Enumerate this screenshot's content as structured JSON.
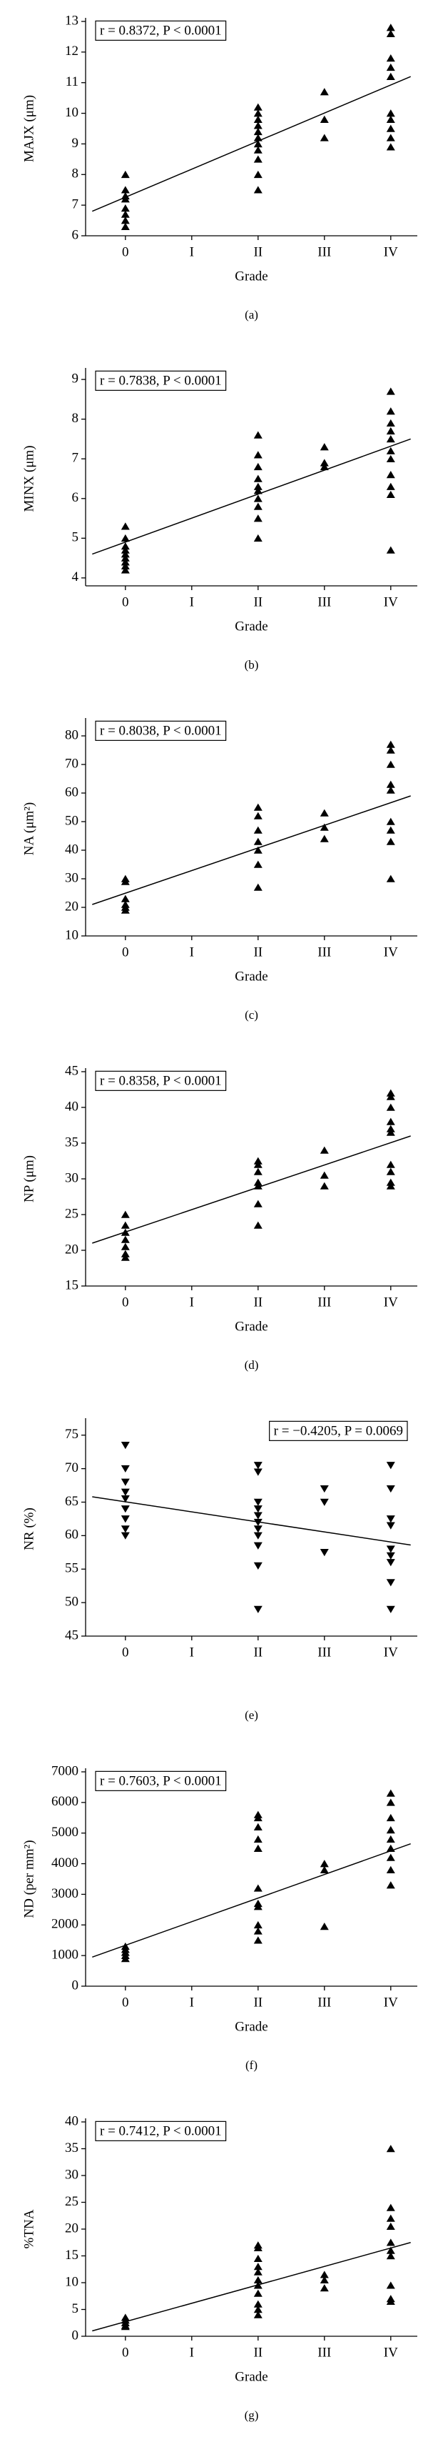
{
  "chart_data": [
    {
      "type": "scatter",
      "ylabel": "MAJX (μm)",
      "xlabel": "Grade",
      "caption": "(a)",
      "annotation": "r = 0.8372, P < 0.0001",
      "annotation_corner": "upper left",
      "marker": "triangle-up",
      "color": "#000000",
      "xlim": [
        -0.6,
        4.4
      ],
      "xticks": [
        0,
        {
          "value": 1,
          "label": "I"
        },
        {
          "value": 2,
          "label": "II"
        },
        {
          "value": 3,
          "label": "III"
        },
        {
          "value": 4,
          "label": "IV"
        }
      ],
      "ylim": [
        6,
        13
      ],
      "yticks": [
        6,
        7,
        8,
        9,
        10,
        11,
        12,
        13
      ],
      "x": [
        0,
        0,
        0,
        0,
        0,
        0,
        0,
        0,
        2,
        2,
        2,
        2,
        2,
        2,
        2,
        2,
        2,
        2,
        2,
        3,
        3,
        3,
        4,
        4,
        4,
        4,
        4,
        4,
        4,
        4,
        4,
        4
      ],
      "values": [
        8.0,
        7.5,
        7.3,
        7.2,
        6.9,
        6.7,
        6.5,
        6.3,
        10.2,
        10.0,
        9.8,
        9.6,
        9.4,
        9.2,
        9.0,
        8.8,
        8.5,
        8.0,
        7.5,
        10.7,
        9.8,
        9.2,
        12.8,
        12.6,
        11.8,
        11.5,
        11.2,
        10.0,
        9.8,
        9.5,
        9.2,
        8.9
      ],
      "fit": {
        "x": [
          -0.5,
          4.3
        ],
        "y": [
          6.8,
          11.2
        ]
      }
    },
    {
      "type": "scatter",
      "ylabel": "MINX (μm)",
      "xlabel": "Grade",
      "caption": "(b)",
      "annotation": "r = 0.7838, P < 0.0001",
      "annotation_corner": "upper left",
      "marker": "triangle-up",
      "color": "#000000",
      "xlim": [
        -0.6,
        4.4
      ],
      "xticks": [
        0,
        {
          "value": 1,
          "label": "I"
        },
        {
          "value": 2,
          "label": "II"
        },
        {
          "value": 3,
          "label": "III"
        },
        {
          "value": 4,
          "label": "IV"
        }
      ],
      "ylim": [
        3.8,
        9.2
      ],
      "yticks": [
        4,
        5,
        6,
        7,
        8,
        9
      ],
      "x": [
        0,
        0,
        0,
        0,
        0,
        0,
        0,
        0,
        0,
        2,
        2,
        2,
        2,
        2,
        2,
        2,
        2,
        2,
        2,
        3,
        3,
        3,
        4,
        4,
        4,
        4,
        4,
        4,
        4,
        4,
        4,
        4,
        4
      ],
      "values": [
        5.3,
        5.0,
        4.8,
        4.7,
        4.6,
        4.5,
        4.4,
        4.3,
        4.2,
        7.6,
        7.1,
        6.8,
        6.5,
        6.3,
        6.2,
        6.0,
        5.8,
        5.5,
        5.0,
        7.3,
        6.9,
        6.8,
        8.7,
        8.2,
        7.9,
        7.7,
        7.5,
        7.2,
        7.0,
        6.6,
        6.3,
        6.1,
        4.7
      ],
      "fit": {
        "x": [
          -0.5,
          4.3
        ],
        "y": [
          4.6,
          7.5
        ]
      }
    },
    {
      "type": "scatter",
      "ylabel": "NA (μm²)",
      "xlabel": "Grade",
      "caption": "(c)",
      "annotation": "r = 0.8038, P < 0.0001",
      "annotation_corner": "upper left",
      "marker": "triangle-up",
      "color": "#000000",
      "xlim": [
        -0.6,
        4.4
      ],
      "xticks": [
        0,
        {
          "value": 1,
          "label": "I"
        },
        {
          "value": 2,
          "label": "II"
        },
        {
          "value": 3,
          "label": "III"
        },
        {
          "value": 4,
          "label": "IV"
        }
      ],
      "ylim": [
        10,
        85
      ],
      "yticks": [
        10,
        20,
        30,
        40,
        50,
        60,
        70,
        80
      ],
      "x": [
        0,
        0,
        0,
        0,
        0,
        0,
        2,
        2,
        2,
        2,
        2,
        2,
        2,
        3,
        3,
        3,
        4,
        4,
        4,
        4,
        4,
        4,
        4,
        4,
        4
      ],
      "values": [
        30,
        29,
        23,
        21,
        20,
        19,
        55,
        52,
        47,
        43,
        40,
        35,
        27,
        53,
        48,
        44,
        77,
        75,
        70,
        63,
        61,
        50,
        47,
        43,
        30
      ],
      "fit": {
        "x": [
          -0.5,
          4.3
        ],
        "y": [
          21,
          59
        ]
      }
    },
    {
      "type": "scatter",
      "ylabel": "NP (μm)",
      "xlabel": "Grade",
      "caption": "(d)",
      "annotation": "r = 0.8358, P < 0.0001",
      "annotation_corner": "upper left",
      "marker": "triangle-up",
      "color": "#000000",
      "xlim": [
        -0.6,
        4.4
      ],
      "xticks": [
        0,
        {
          "value": 1,
          "label": "I"
        },
        {
          "value": 2,
          "label": "II"
        },
        {
          "value": 3,
          "label": "III"
        },
        {
          "value": 4,
          "label": "IV"
        }
      ],
      "ylim": [
        15,
        45
      ],
      "yticks": [
        15,
        20,
        25,
        30,
        35,
        40,
        45
      ],
      "x": [
        0,
        0,
        0,
        0,
        0,
        0,
        0,
        2,
        2,
        2,
        2,
        2,
        2,
        2,
        3,
        3,
        3,
        4,
        4,
        4,
        4,
        4,
        4,
        4,
        4,
        4,
        4
      ],
      "values": [
        25,
        23.5,
        22.5,
        21.5,
        20.5,
        19.5,
        19,
        32.5,
        32,
        31,
        29.5,
        29,
        26.5,
        23.5,
        34,
        30.5,
        29,
        42,
        41.5,
        40,
        38,
        37,
        36.5,
        32,
        31,
        29.5,
        29
      ],
      "fit": {
        "x": [
          -0.5,
          4.3
        ],
        "y": [
          21,
          36
        ]
      }
    },
    {
      "type": "scatter",
      "ylabel": "NR (%)",
      "caption": "(e)",
      "annotation": "r = −0.4205, P = 0.0069",
      "annotation_corner": "upper right",
      "marker": "triangle-down",
      "color": "#000000",
      "xlim": [
        -0.6,
        4.4
      ],
      "xticks": [
        0,
        {
          "value": 1,
          "label": "I"
        },
        {
          "value": 2,
          "label": "II"
        },
        {
          "value": 3,
          "label": "III"
        },
        {
          "value": 4,
          "label": "IV"
        }
      ],
      "ylim": [
        45,
        77
      ],
      "yticks": [
        45,
        50,
        55,
        60,
        65,
        70,
        75
      ],
      "x": [
        0,
        0,
        0,
        0,
        0,
        0,
        0,
        0,
        0,
        2,
        2,
        2,
        2,
        2,
        2,
        2,
        2,
        2,
        2,
        2,
        3,
        3,
        3,
        4,
        4,
        4,
        4,
        4,
        4,
        4,
        4,
        4
      ],
      "values": [
        73.5,
        70,
        68,
        66.5,
        65.5,
        64,
        62.5,
        61,
        60,
        70.5,
        69.5,
        65,
        64,
        63,
        62,
        61,
        60,
        58.5,
        55.5,
        49,
        67,
        65,
        57.5,
        70.5,
        67,
        62.5,
        61.5,
        58,
        57,
        56,
        53,
        49
      ],
      "fit": {
        "x": [
          -0.5,
          4.3
        ],
        "y": [
          65.8,
          58.6
        ]
      }
    },
    {
      "type": "scatter",
      "ylabel": "ND (per mm²)",
      "xlabel": "Grade",
      "caption": "(f)",
      "annotation": "r = 0.7603, P < 0.0001",
      "annotation_corner": "upper left",
      "marker": "triangle-up",
      "color": "#000000",
      "xlim": [
        -0.6,
        4.4
      ],
      "xticks": [
        0,
        {
          "value": 1,
          "label": "I"
        },
        {
          "value": 2,
          "label": "II"
        },
        {
          "value": 3,
          "label": "III"
        },
        {
          "value": 4,
          "label": "IV"
        }
      ],
      "ylim": [
        0,
        7000
      ],
      "yticks": [
        0,
        1000,
        2000,
        3000,
        4000,
        5000,
        6000,
        7000
      ],
      "x": [
        0,
        0,
        0,
        0,
        0,
        2,
        2,
        2,
        2,
        2,
        2,
        2,
        2,
        2,
        2,
        2,
        3,
        3,
        3,
        4,
        4,
        4,
        4,
        4,
        4,
        4,
        4,
        4
      ],
      "values": [
        1300,
        1200,
        1100,
        1000,
        900,
        5600,
        5500,
        5200,
        4800,
        4500,
        3200,
        2700,
        2600,
        2000,
        1800,
        1500,
        4000,
        3800,
        1950,
        6300,
        6000,
        5500,
        5100,
        4800,
        4500,
        4200,
        3800,
        3300
      ],
      "fit": {
        "x": [
          -0.5,
          4.3
        ],
        "y": [
          950,
          4650
        ]
      }
    },
    {
      "type": "scatter",
      "ylabel": "%TNA",
      "xlabel": "Grade",
      "caption": "(g)",
      "annotation": "r = 0.7412, P < 0.0001",
      "annotation_corner": "upper left",
      "marker": "triangle-up",
      "color": "#000000",
      "xlim": [
        -0.6,
        4.4
      ],
      "xticks": [
        0,
        {
          "value": 1,
          "label": "I"
        },
        {
          "value": 2,
          "label": "II"
        },
        {
          "value": 3,
          "label": "III"
        },
        {
          "value": 4,
          "label": "IV"
        }
      ],
      "ylim": [
        0,
        40
      ],
      "yticks": [
        0,
        5,
        10,
        15,
        20,
        25,
        30,
        35,
        40
      ],
      "x": [
        0,
        0,
        0,
        0,
        0,
        2,
        2,
        2,
        2,
        2,
        2,
        2,
        2,
        2,
        2,
        2,
        3,
        3,
        3,
        4,
        4,
        4,
        4,
        4,
        4,
        4,
        4,
        4,
        4
      ],
      "values": [
        3.5,
        3,
        2.5,
        2,
        1.8,
        17,
        16.5,
        14.5,
        13,
        12,
        10.5,
        9.5,
        8,
        6,
        5,
        4,
        11.5,
        10.5,
        9,
        35,
        24,
        22,
        20.5,
        17.5,
        16,
        15,
        9.5,
        7,
        6.5
      ],
      "fit": {
        "x": [
          -0.5,
          4.3
        ],
        "y": [
          1,
          17.5
        ]
      }
    }
  ]
}
